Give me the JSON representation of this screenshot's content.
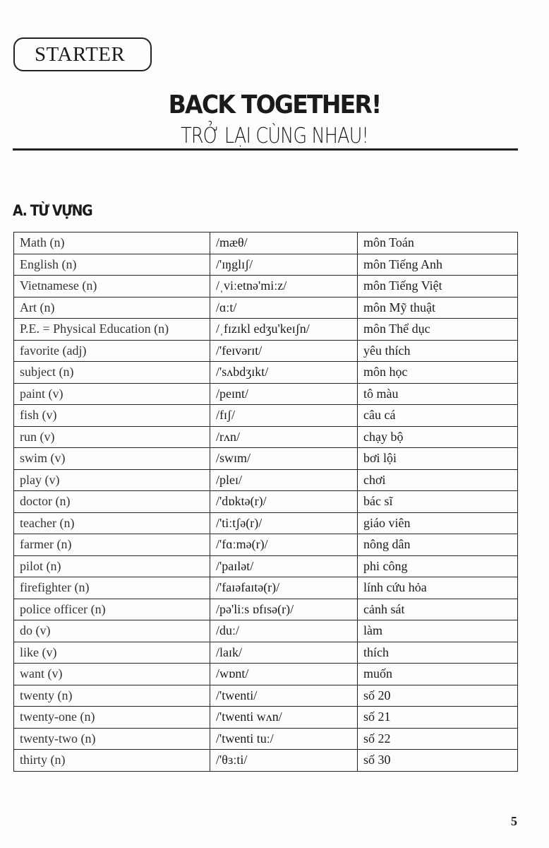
{
  "header": {
    "starter_label": "STARTER",
    "title": "BACK TOGETHER!",
    "subtitle": "TRỞ LẠI CÙNG NHAU!"
  },
  "section_title": "A. TỪ VỰNG",
  "vocabulary": [
    [
      "Math (n)",
      "/mæθ/",
      "môn Toán"
    ],
    [
      "English (n)",
      "/'ɪŋglɪʃ/",
      "môn Tiếng Anh"
    ],
    [
      "Vietnamese (n)",
      "/ˌviːetnə'miːz/",
      "môn Tiếng Việt"
    ],
    [
      "Art (n)",
      "/ɑːt/",
      "môn Mỹ thuật"
    ],
    [
      "P.E. = Physical Education (n)",
      "/ˌfɪzɪkl edʒu'keɪʃn/",
      "môn Thể dục"
    ],
    [
      "favorite (adj)",
      "/'feɪvərɪt/",
      "yêu thích"
    ],
    [
      "subject (n)",
      "/'sʌbdʒɪkt/",
      "môn học"
    ],
    [
      "paint (v)",
      "/peɪnt/",
      "tô màu"
    ],
    [
      "fish (v)",
      "/fɪʃ/",
      "câu cá"
    ],
    [
      "run (v)",
      "/rʌn/",
      "chạy bộ"
    ],
    [
      "swim (v)",
      "/swɪm/",
      "bơi lội"
    ],
    [
      "play (v)",
      "/pleɪ/",
      "chơi"
    ],
    [
      "doctor (n)",
      "/'dɒktə(r)/",
      "bác sĩ"
    ],
    [
      "teacher (n)",
      "/'tiːtʃə(r)/",
      "giáo viên"
    ],
    [
      "farmer (n)",
      "/'fɑːmə(r)/",
      "nông dân"
    ],
    [
      "pilot (n)",
      "/'paɪlət/",
      "phi công"
    ],
    [
      "firefighter (n)",
      "/'faɪəfaɪtə(r)/",
      "lính cứu hỏa"
    ],
    [
      "police officer (n)",
      "/pə'liːs ɒfɪsə(r)/",
      "cảnh sát"
    ],
    [
      "do (v)",
      "/duː/",
      "làm"
    ],
    [
      "like (v)",
      "/laɪk/",
      "thích"
    ],
    [
      "want (v)",
      "/wɒnt/",
      "muốn"
    ],
    [
      "twenty (n)",
      "/'twenti/",
      "số 20"
    ],
    [
      "twenty-one (n)",
      "/'twenti wʌn/",
      "số 21"
    ],
    [
      "twenty-two (n)",
      "/'twenti tuː/",
      "số 22"
    ],
    [
      "thirty (n)",
      "/'θɜːti/",
      "số 30"
    ]
  ],
  "page_number": "5"
}
